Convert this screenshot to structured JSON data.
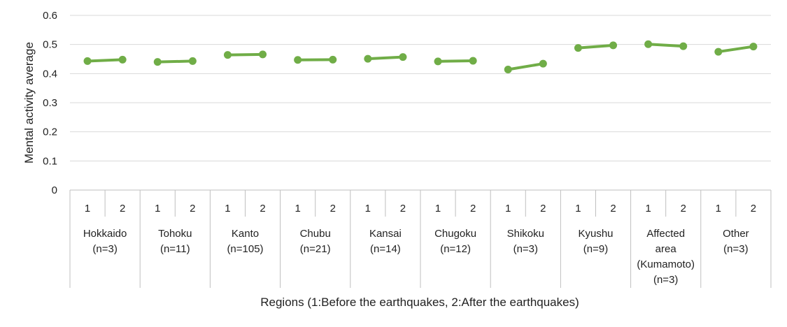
{
  "chart_data": {
    "type": "line",
    "ylabel": "Mental activity average",
    "xlabel": "Regions (1:Before the earthquakes, 2:After the earthquakes)",
    "ylim": [
      0,
      0.6
    ],
    "yticks": [
      "0",
      "0.1",
      "0.2",
      "0.3",
      "0.4",
      "0.5",
      "0.6"
    ],
    "grid": true,
    "sub_labels": [
      "1",
      "2"
    ],
    "line_color": "#70AD47",
    "groups": [
      {
        "name": [
          "Hokkaido",
          "(n=3)"
        ],
        "values": [
          0.443,
          0.448
        ]
      },
      {
        "name": [
          "Tohoku",
          "(n=11)"
        ],
        "values": [
          0.44,
          0.443
        ]
      },
      {
        "name": [
          "Kanto",
          "(n=105)"
        ],
        "values": [
          0.464,
          0.466
        ]
      },
      {
        "name": [
          "Chubu",
          "(n=21)"
        ],
        "values": [
          0.447,
          0.448
        ]
      },
      {
        "name": [
          "Kansai",
          "(n=14)"
        ],
        "values": [
          0.451,
          0.457
        ]
      },
      {
        "name": [
          "Chugoku",
          "(n=12)"
        ],
        "values": [
          0.442,
          0.444
        ]
      },
      {
        "name": [
          "Shikoku",
          "(n=3)"
        ],
        "values": [
          0.414,
          0.434
        ]
      },
      {
        "name": [
          "Kyushu",
          "(n=9)"
        ],
        "values": [
          0.488,
          0.497
        ]
      },
      {
        "name": [
          "Affected",
          "area",
          "(Kumamoto)",
          "(n=3)"
        ],
        "values": [
          0.501,
          0.494
        ]
      },
      {
        "name": [
          "Other",
          "(n=3)"
        ],
        "values": [
          0.475,
          0.493
        ]
      }
    ]
  }
}
